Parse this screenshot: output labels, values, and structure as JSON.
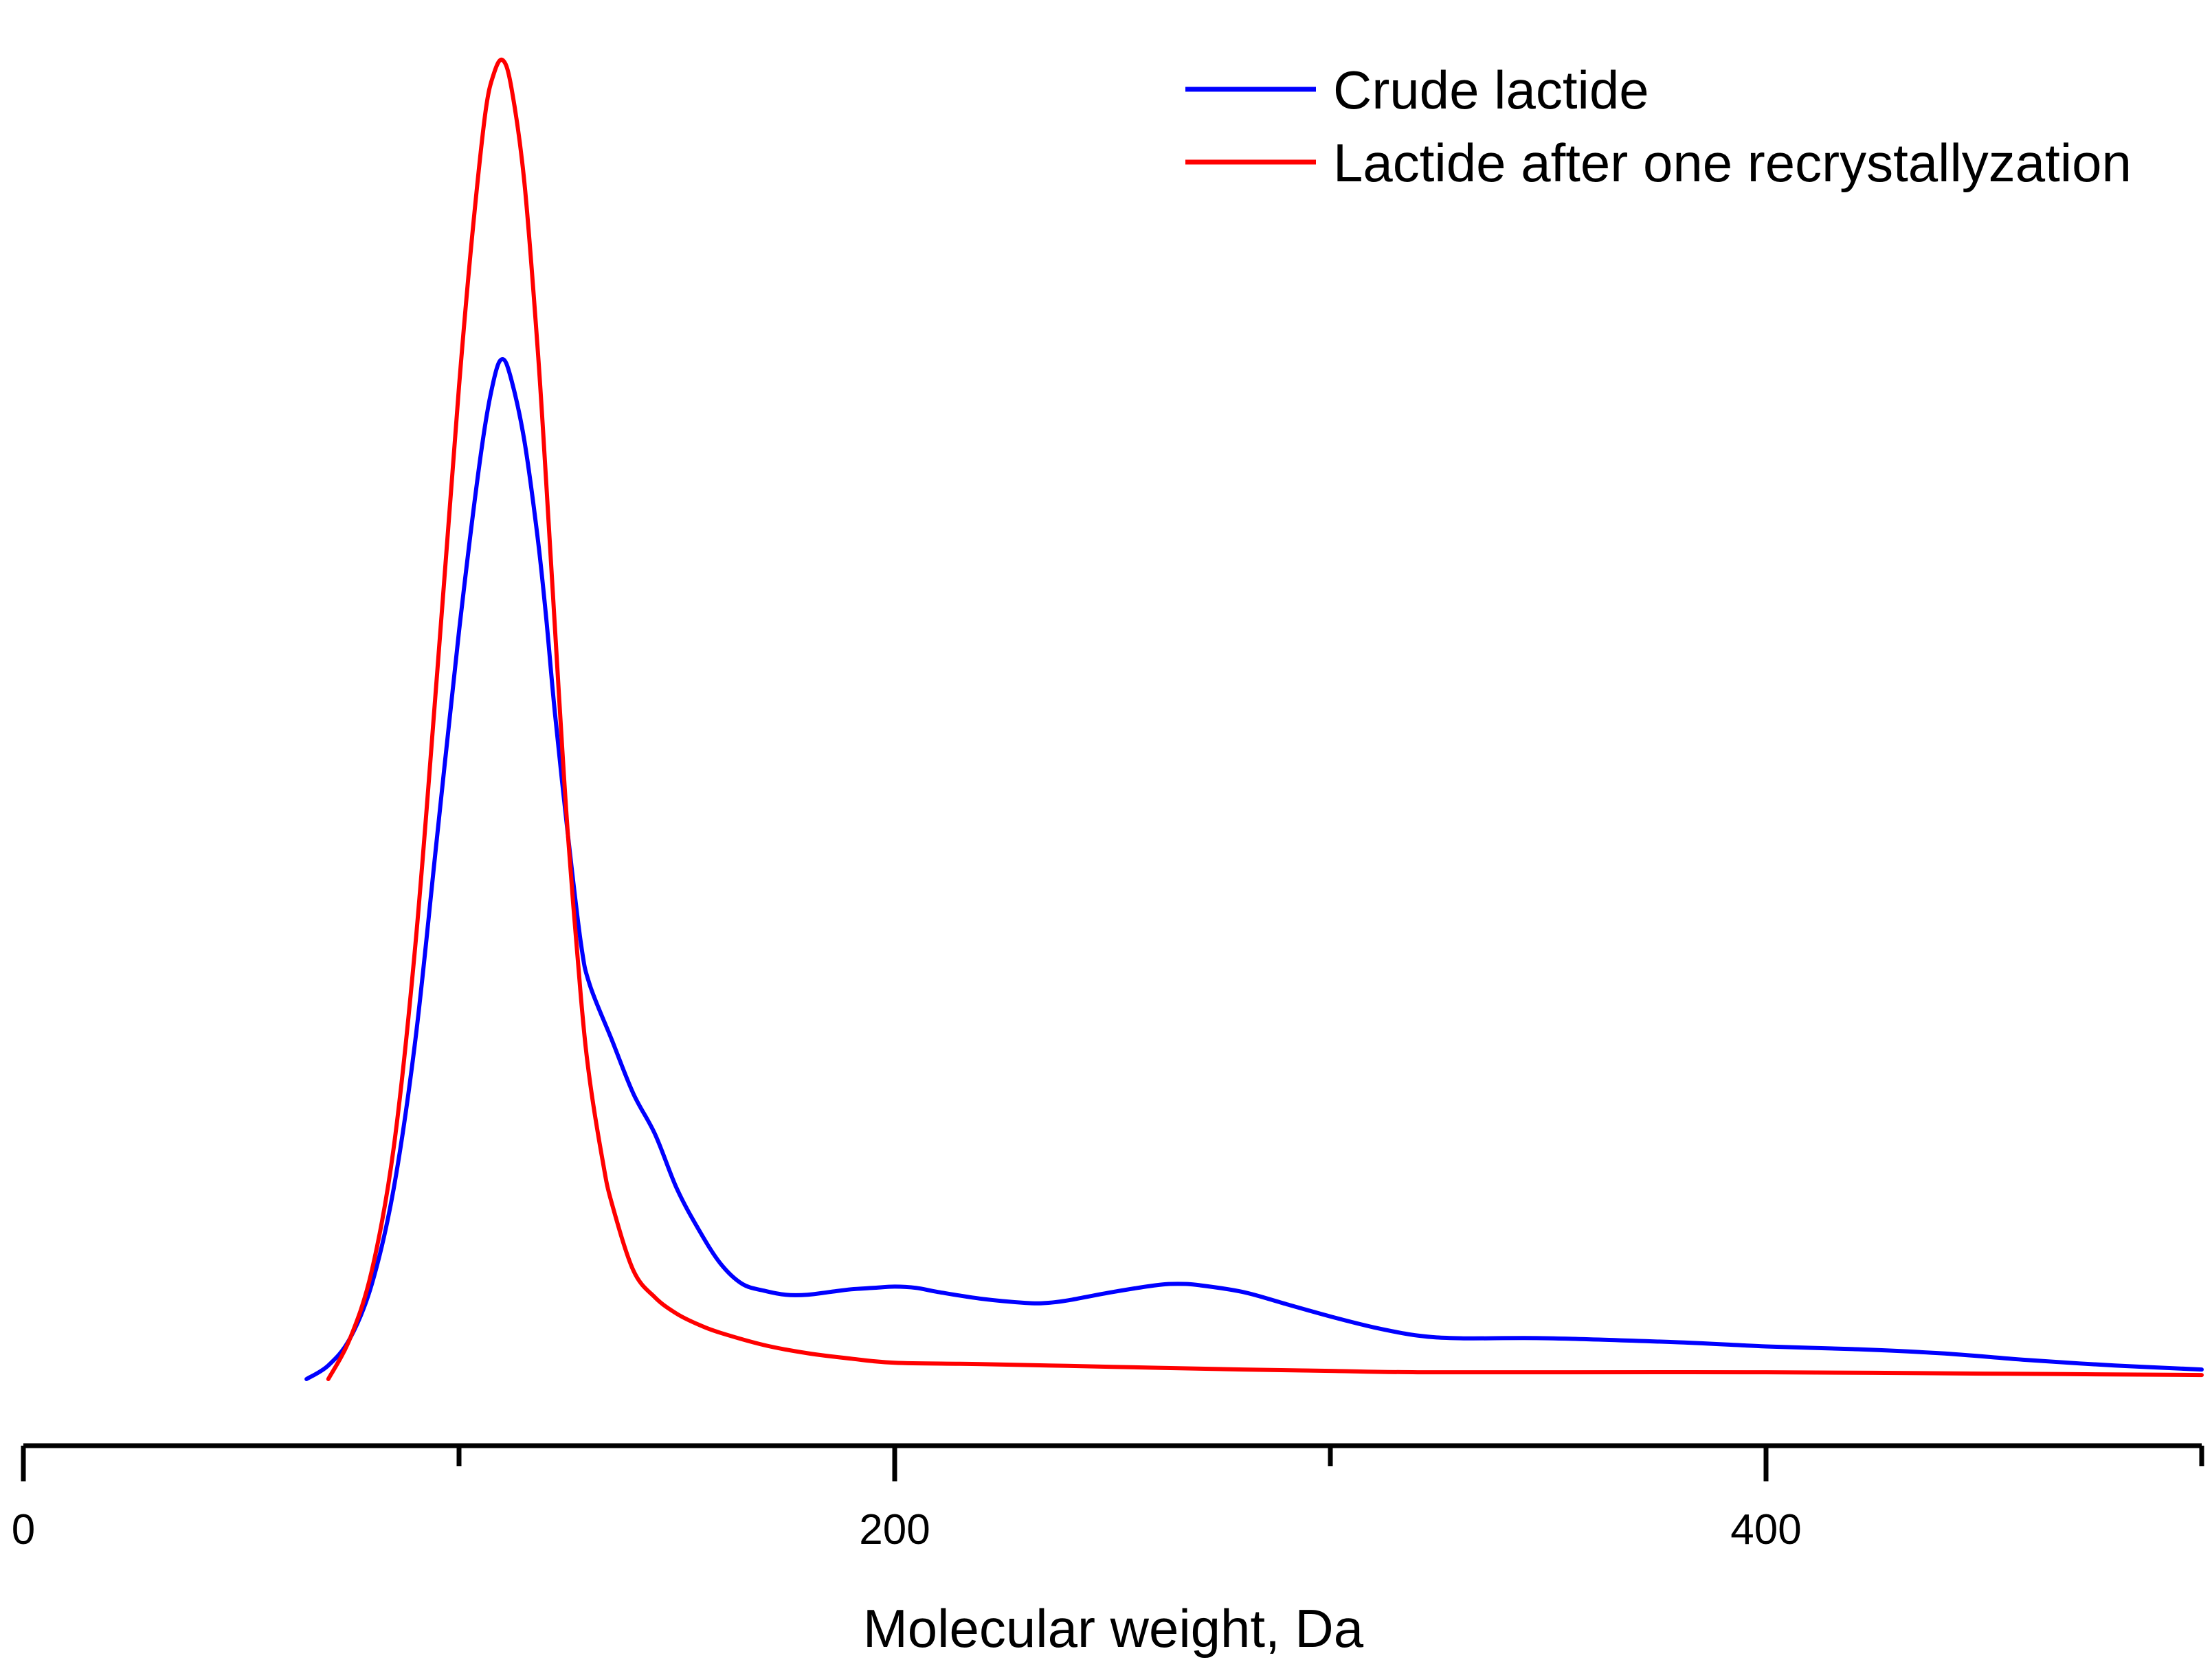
{
  "chart_data": {
    "type": "line",
    "title": "",
    "xlabel": "Molecular weight, Da",
    "ylabel": "",
    "xlim": [
      0,
      500
    ],
    "ylim": [
      0,
      1.0
    ],
    "x_major_ticks": [
      0,
      200,
      400
    ],
    "x_minor_ticks": [
      100,
      300,
      500
    ],
    "grid": false,
    "legend_position": "top-right",
    "series": [
      {
        "name": "Crude lactide",
        "color": "#0000ff",
        "x": [
          65,
          70,
          75,
          80,
          85,
          90,
          95,
          100,
          105,
          108,
          110,
          112,
          115,
          118,
          120,
          122,
          125,
          128,
          130,
          135,
          140,
          145,
          150,
          155,
          160,
          165,
          170,
          175,
          180,
          185,
          190,
          195,
          200,
          205,
          210,
          220,
          230,
          235,
          240,
          250,
          260,
          265,
          270,
          280,
          290,
          300,
          310,
          320,
          330,
          350,
          380,
          400,
          420,
          440,
          460,
          480,
          500
        ],
        "y": [
          0.0,
          0.01,
          0.03,
          0.07,
          0.14,
          0.25,
          0.4,
          0.55,
          0.68,
          0.735,
          0.75,
          0.735,
          0.69,
          0.62,
          0.56,
          0.49,
          0.4,
          0.32,
          0.29,
          0.25,
          0.21,
          0.18,
          0.14,
          0.11,
          0.085,
          0.07,
          0.065,
          0.062,
          0.062,
          0.064,
          0.066,
          0.067,
          0.068,
          0.067,
          0.064,
          0.059,
          0.056,
          0.056,
          0.058,
          0.064,
          0.069,
          0.07,
          0.069,
          0.064,
          0.055,
          0.046,
          0.038,
          0.032,
          0.03,
          0.03,
          0.027,
          0.024,
          0.022,
          0.019,
          0.014,
          0.01,
          0.007
        ]
      },
      {
        "name": "Lactide after one recrystallyzation",
        "color": "#ff0000",
        "x": [
          70,
          75,
          80,
          85,
          90,
          95,
          100,
          103,
          106,
          108,
          110,
          112,
          115,
          118,
          120,
          123,
          125,
          128,
          130,
          133,
          135,
          140,
          145,
          150,
          155,
          160,
          170,
          180,
          190,
          200,
          220,
          250,
          280,
          300,
          320,
          350,
          400,
          450,
          500
        ],
        "y": [
          0.0,
          0.03,
          0.08,
          0.17,
          0.32,
          0.52,
          0.73,
          0.84,
          0.93,
          0.96,
          0.97,
          0.95,
          0.88,
          0.76,
          0.66,
          0.5,
          0.4,
          0.28,
          0.22,
          0.16,
          0.13,
          0.08,
          0.06,
          0.048,
          0.04,
          0.034,
          0.025,
          0.019,
          0.015,
          0.012,
          0.011,
          0.009,
          0.007,
          0.006,
          0.005,
          0.005,
          0.005,
          0.004,
          0.003
        ]
      }
    ]
  }
}
